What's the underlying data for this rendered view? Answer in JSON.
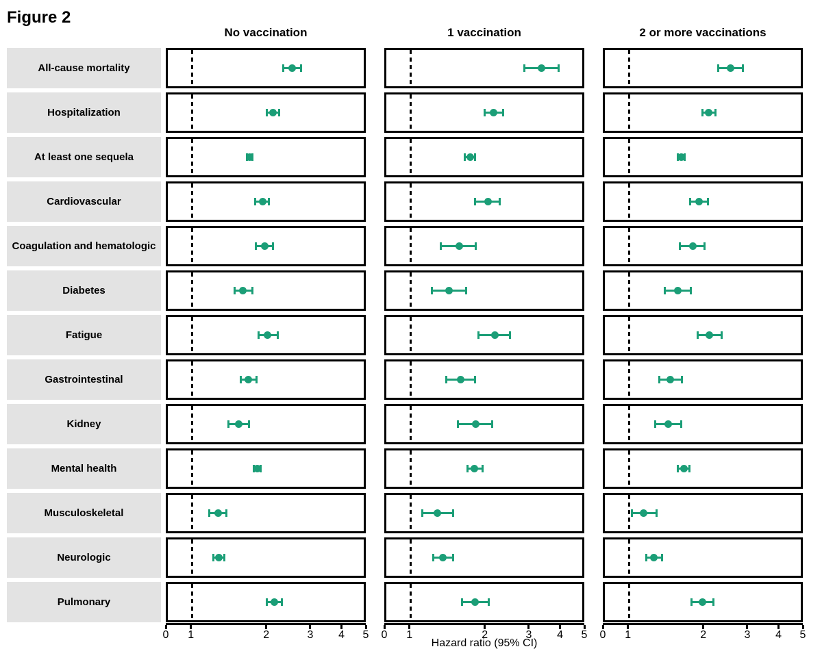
{
  "chart_data": {
    "type": "forest_plot",
    "title": "Figure 2",
    "xlabel": "Hazard ratio (95% CI)",
    "x_scale": "log between 1 and 5, with axis-break tick at 0",
    "xticks": [
      0,
      1,
      2,
      3,
      4,
      5
    ],
    "xlim": [
      0,
      5
    ],
    "reference_line": 1,
    "legend_position": "none",
    "grid": false,
    "categories": [
      "All-cause mortality",
      "Hospitalization",
      "At least one sequela",
      "Cardiovascular",
      "Coagulation and hematologic",
      "Diabetes",
      "Fatigue",
      "Gastrointestinal",
      "Kidney",
      "Mental health",
      "Musculoskeletal",
      "Neurologic",
      "Pulmonary"
    ],
    "series": [
      {
        "name": "No vaccination",
        "hr": [
          2.56,
          2.13,
          1.71,
          1.93,
          1.97,
          1.61,
          2.02,
          1.69,
          1.54,
          1.84,
          1.27,
          1.28,
          2.16
        ],
        "ci_low": [
          2.34,
          2.0,
          1.66,
          1.8,
          1.81,
          1.48,
          1.85,
          1.57,
          1.4,
          1.77,
          1.17,
          1.21,
          2.01
        ],
        "ci_high": [
          2.79,
          2.26,
          1.76,
          2.06,
          2.14,
          1.76,
          2.23,
          1.83,
          1.71,
          1.91,
          1.38,
          1.35,
          2.32
        ]
      },
      {
        "name": "1 vaccination",
        "hr": [
          3.42,
          2.17,
          1.74,
          2.06,
          1.57,
          1.43,
          2.2,
          1.6,
          1.84,
          1.82,
          1.28,
          1.35,
          1.83
        ],
        "ci_low": [
          2.89,
          1.99,
          1.65,
          1.82,
          1.32,
          1.21,
          1.88,
          1.39,
          1.55,
          1.7,
          1.11,
          1.23,
          1.61
        ],
        "ci_high": [
          4.02,
          2.39,
          1.83,
          2.31,
          1.84,
          1.69,
          2.55,
          1.83,
          2.15,
          1.96,
          1.49,
          1.49,
          2.08
        ]
      },
      {
        "name": "2 or more vaccinations",
        "hr": [
          2.59,
          2.11,
          1.63,
          1.92,
          1.81,
          1.57,
          2.12,
          1.47,
          1.44,
          1.67,
          1.14,
          1.26,
          1.99
        ],
        "ci_low": [
          2.29,
          1.98,
          1.57,
          1.76,
          1.6,
          1.39,
          1.89,
          1.32,
          1.27,
          1.57,
          1.02,
          1.17,
          1.79
        ],
        "ci_high": [
          2.92,
          2.25,
          1.69,
          2.1,
          2.03,
          1.78,
          2.38,
          1.64,
          1.63,
          1.76,
          1.29,
          1.36,
          2.21
        ]
      }
    ],
    "colors": {
      "marker": "#1b9e77",
      "row_label_bg": "#e3e3e3",
      "reference_line": "#000000",
      "panel_border": "#000000"
    }
  }
}
